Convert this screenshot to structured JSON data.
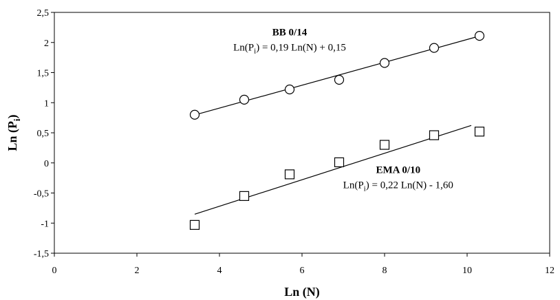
{
  "chart_data": {
    "type": "scatter",
    "xlabel": "Ln (N)",
    "ylabel": "Ln (P",
    "ylabel_sub": "i",
    "ylabel_close": ")",
    "xlim": [
      0,
      12
    ],
    "ylim": [
      -1.5,
      2.5
    ],
    "x_ticks": [
      0,
      2,
      4,
      6,
      8,
      10,
      12
    ],
    "x_tick_labels": [
      "0",
      "2",
      "4",
      "6",
      "8",
      "10",
      "12"
    ],
    "y_ticks": [
      -1.5,
      -1,
      -0.5,
      0,
      0.5,
      1,
      1.5,
      2,
      2.5
    ],
    "y_tick_labels": [
      "-1,5",
      "-1",
      "-0,5",
      "0",
      "0,5",
      "1",
      "1,5",
      "2",
      "2,5"
    ],
    "grid": false,
    "series": [
      {
        "name": "BB 0/14",
        "marker": "circle",
        "x": [
          3.4,
          4.6,
          5.7,
          6.9,
          8.0,
          9.2,
          10.3
        ],
        "y": [
          0.8,
          1.05,
          1.22,
          1.38,
          1.66,
          1.91,
          2.11
        ],
        "trendline": {
          "slope": 0.19,
          "intercept": 0.15,
          "x_range": [
            3.4,
            10.3
          ]
        }
      },
      {
        "name": "EMA 0/10",
        "marker": "square",
        "x": [
          3.4,
          4.6,
          5.7,
          6.9,
          8.0,
          9.2,
          10.3
        ],
        "y": [
          -1.03,
          -0.55,
          -0.19,
          0.01,
          0.3,
          0.46,
          0.52
        ],
        "trendline": {
          "slope": 0.22,
          "intercept": -1.6,
          "x_range": [
            3.4,
            10.1
          ]
        }
      }
    ],
    "annotations": [
      {
        "title": "BB 0/14",
        "eq_pre": "Ln(P",
        "eq_sub": "i",
        "eq_post": ") = 0,19 Ln(N)  + 0,15",
        "anchor_x": 5.7,
        "anchor_y": 2.12
      },
      {
        "title": "EMA 0/10",
        "eq_pre": "Ln(P",
        "eq_sub": "i",
        "eq_post": ") = 0,22 Ln(N)  - 1,60",
        "anchor_x": 8.33,
        "anchor_y": -0.17
      }
    ]
  }
}
